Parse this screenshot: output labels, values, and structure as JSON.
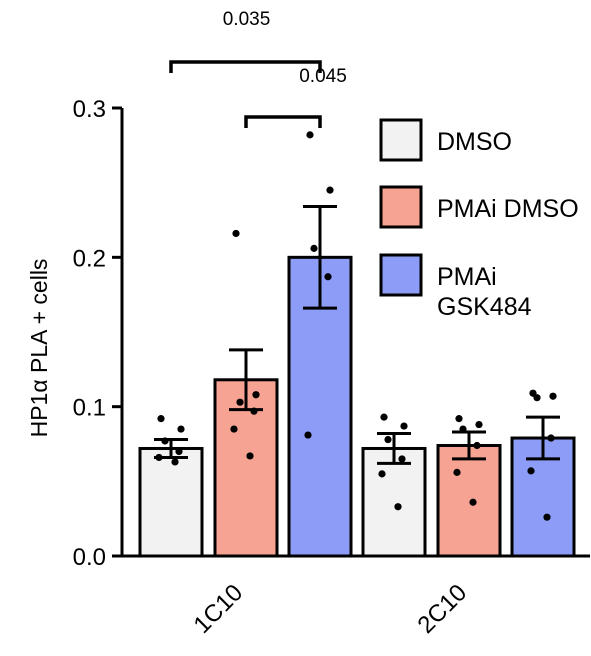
{
  "chart_data": {
    "type": "bar",
    "title": "",
    "xlabel": "",
    "ylabel": "HP1α PLA + cells",
    "ylim": [
      0,
      0.3
    ],
    "yticks": [
      0.0,
      0.1,
      0.2,
      0.3
    ],
    "ytick_labels": [
      "0.0",
      "0.1",
      "0.2",
      "0.3"
    ],
    "categories": [
      "1C10",
      "2C10"
    ],
    "series": [
      {
        "name": "DMSO",
        "color": "#f2f2f2",
        "values": [
          0.072,
          0.072
        ],
        "sem": [
          0.006,
          0.01
        ],
        "points": [
          [
            0.092,
            0.085,
            0.077,
            0.07,
            0.066,
            0.063
          ],
          [
            0.093,
            0.087,
            0.078,
            0.065,
            0.055,
            0.033
          ]
        ]
      },
      {
        "name": "PMAi DMSO",
        "color": "#f7a393",
        "values": [
          0.118,
          0.074
        ],
        "sem": [
          0.02,
          0.009
        ],
        "points": [
          [
            0.216,
            0.108,
            0.103,
            0.097,
            0.085,
            0.067
          ],
          [
            0.092,
            0.088,
            0.085,
            0.074,
            0.056,
            0.036
          ]
        ]
      },
      {
        "name": "PMAi GSK484",
        "color": "#8c9cf7",
        "values": [
          0.2,
          0.079
        ],
        "sem": [
          0.034,
          0.014
        ],
        "points": [
          [
            0.282,
            0.245,
            0.206,
            0.187,
            0.081
          ],
          [
            0.109,
            0.107,
            0.106,
            0.079,
            0.057,
            0.026
          ]
        ]
      }
    ],
    "significance": [
      {
        "label": "0.035",
        "from_series": 0,
        "to_series": 2,
        "category": 0
      },
      {
        "label": "0.045",
        "from_series": 1,
        "to_series": 2,
        "category": 0
      }
    ],
    "legend_position": "top-right",
    "legend_labels": [
      "DMSO",
      "PMAi DMSO",
      "PMAi\nGSK484"
    ]
  }
}
